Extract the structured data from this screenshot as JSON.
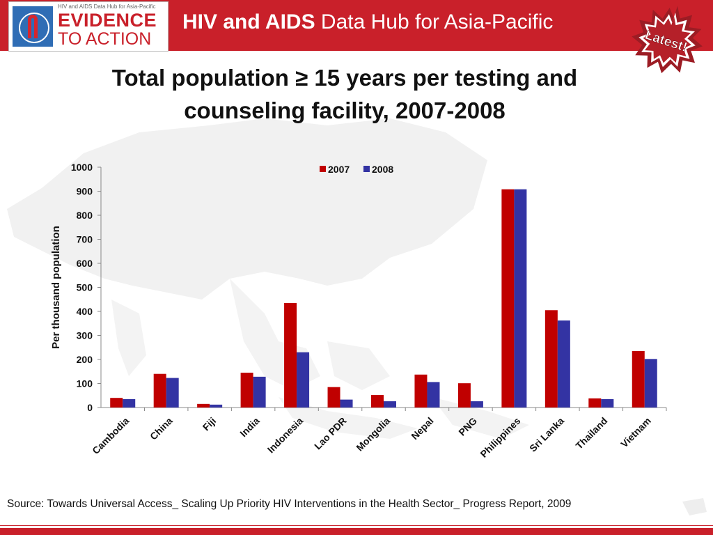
{
  "header": {
    "logo_tagline": "HIV and AIDS Data Hub for Asia-Pacific",
    "logo_line1": "EVIDENCE",
    "logo_line2": "TO ACTION",
    "title_bold": "HIV and AIDS",
    "title_rest": " Data Hub for Asia-Pacific",
    "badge_text": "Latest!"
  },
  "slide": {
    "title_line1": "Total population ≥ 15 years per testing and",
    "title_line2": "counseling facility, 2007-2008"
  },
  "colors": {
    "brand_red": "#c9202a",
    "series_2007": "#c00000",
    "series_2008": "#3333a3"
  },
  "chart_data": {
    "type": "bar",
    "title": "",
    "xlabel": "",
    "ylabel": "Per thousand population",
    "ylim": [
      0,
      1000
    ],
    "yticks": [
      "0",
      "100",
      "200",
      "300",
      "400",
      "500",
      "600",
      "700",
      "800",
      "900",
      "1000"
    ],
    "grid": false,
    "legend_position": "top-center",
    "categories": [
      "Cambodia",
      "China",
      "Fiji",
      "India",
      "Indonesia",
      "Lao PDR",
      "Mongolia",
      "Nepal",
      "PNG",
      "Philippines",
      "Sri Lanka",
      "Thailand",
      "Vietnam"
    ],
    "series": [
      {
        "name": "2007",
        "values": [
          40,
          140,
          15,
          145,
          435,
          85,
          52,
          137,
          101,
          908,
          405,
          38,
          235
        ]
      },
      {
        "name": "2008",
        "values": [
          35,
          123,
          12,
          128,
          230,
          33,
          26,
          106,
          26,
          908,
          362,
          35,
          202
        ]
      }
    ]
  },
  "source": "Source: Towards Universal  Access_ Scaling Up Priority HIV Interventions in the Health Sector_ Progress Report, 2009"
}
